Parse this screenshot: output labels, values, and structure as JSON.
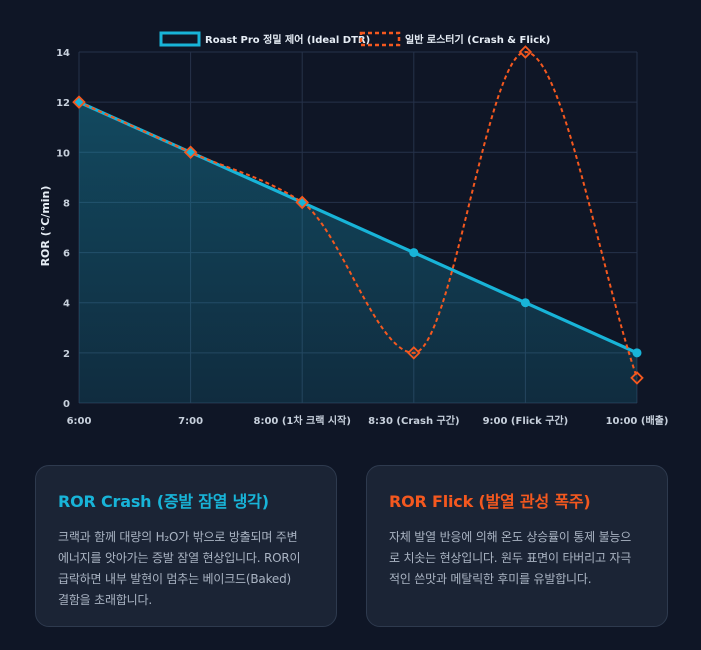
{
  "chart_data": {
    "type": "line",
    "categories": [
      "6:00",
      "7:00",
      "8:00 (1차 크랙 시작)",
      "8:30 (Crash 구간)",
      "9:00 (Flick 구간)",
      "10:00 (배출)"
    ],
    "ylabel": "ROR (°C/min)",
    "ylim": [
      0,
      14
    ],
    "yticks": [
      0,
      2,
      4,
      6,
      8,
      10,
      12,
      14
    ],
    "grid": true,
    "legend_position": "top-center",
    "series": [
      {
        "name": "Roast Pro 정밀 제어 (Ideal DTR)",
        "values": [
          12,
          10,
          8,
          6,
          4,
          2
        ],
        "color": "#18b4d8",
        "style": "solid",
        "fill": true
      },
      {
        "name": "일반 로스터기 (Crash & Flick)",
        "values": [
          12,
          10,
          8,
          2,
          14,
          1
        ],
        "color": "#f4581f",
        "style": "dashed",
        "fill": false
      }
    ]
  },
  "cards": {
    "crash": {
      "title": "ROR Crash (증발 잠열 냉각)",
      "lines": [
        "크랙과 함께 대량의 H₂O가 밖으로 방출되며 주변",
        "에너지를 앗아가는 증발 잠열 현상입니다. ROR이",
        "급락하면 내부 발현이 멈추는 베이크드(Baked)",
        "결함을 초래합니다."
      ]
    },
    "flick": {
      "title": "ROR Flick (발열 관성 폭주)",
      "lines": [
        "자체 발열 반응에 의해 온도 상승률이 통제 불능으",
        "로 치솟는 현상입니다. 원두 표면이 타버리고 자극",
        "적인 쓴맛과 메탈릭한 후미를 유발합니다."
      ]
    }
  }
}
